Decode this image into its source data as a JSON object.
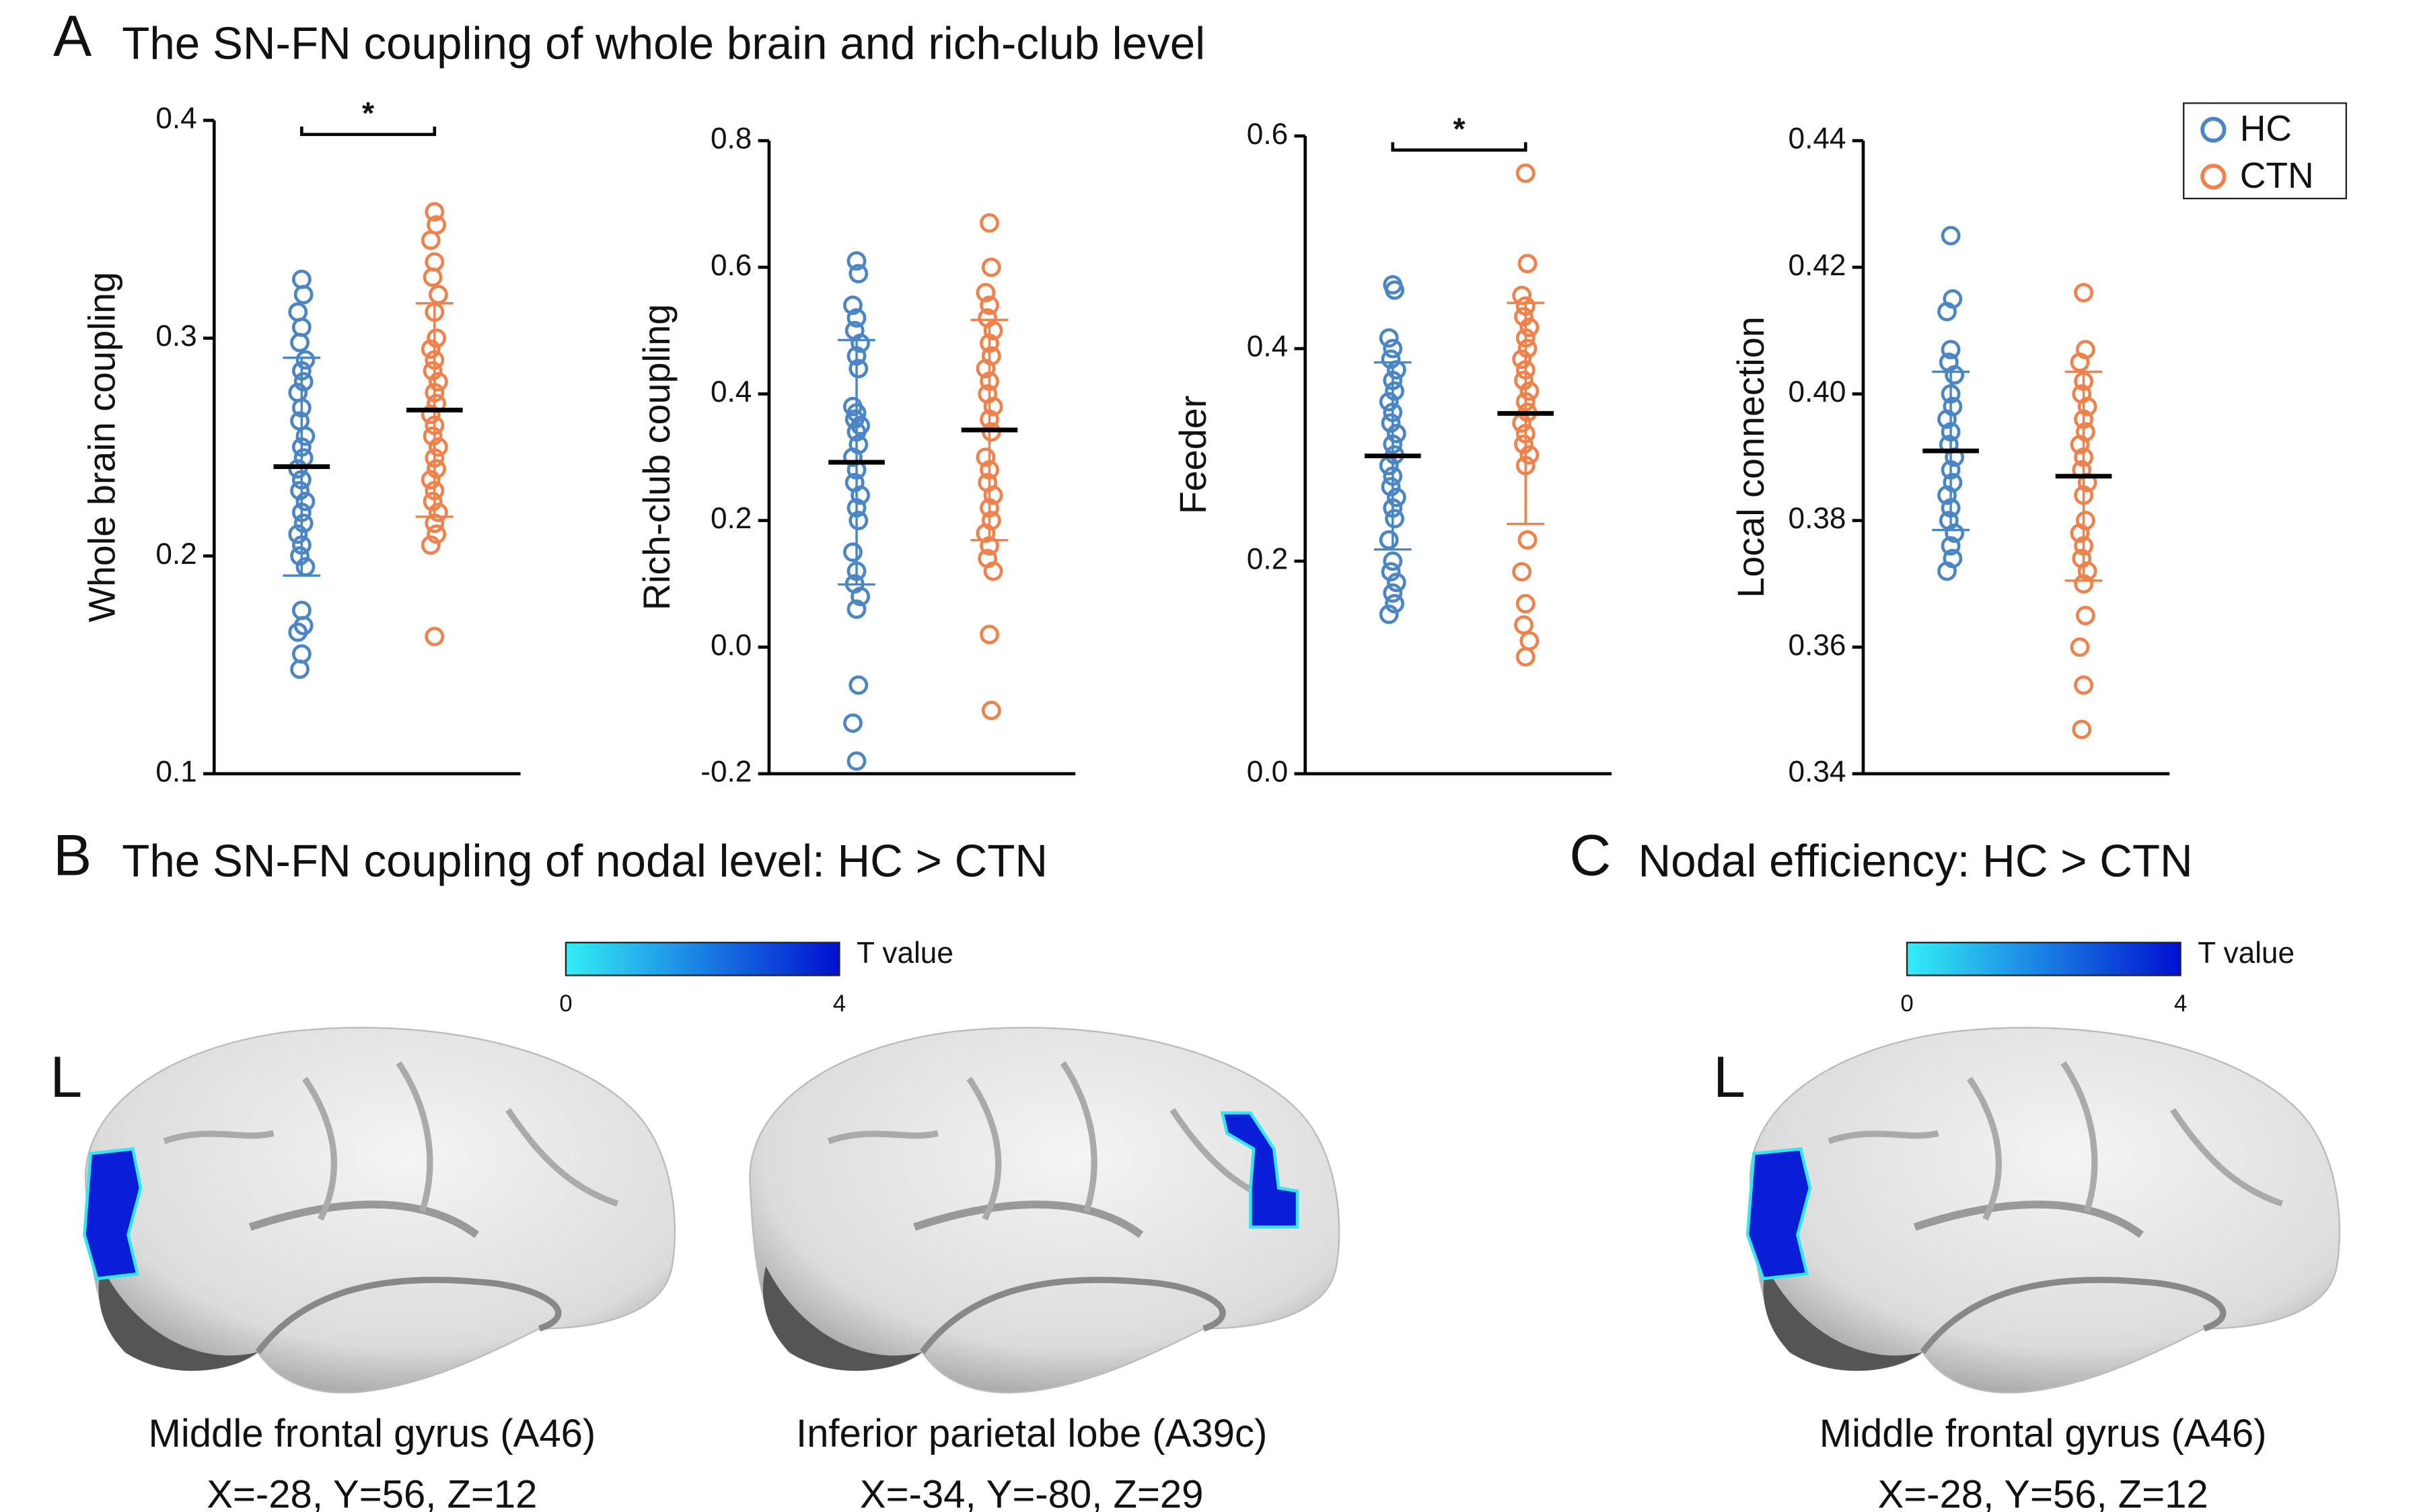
{
  "panels": [
    {
      "label": "A",
      "title": "The SN-FN coupling of whole brain and rich-club level"
    },
    {
      "label": "B",
      "title": "The SN-FN coupling of nodal level: HC > CTN"
    },
    {
      "label": "C",
      "title": "Nodal efficiency:  HC > CTN"
    }
  ],
  "chart_data": [
    {
      "type": "dot",
      "ylabel": "Whole brain coupling",
      "ylim": [
        0.1,
        0.4
      ],
      "yticks": [
        0.1,
        0.2,
        0.3,
        0.4
      ],
      "annotation": "*",
      "series": [
        {
          "color": "#4a86c5",
          "mean": 0.241,
          "sd": 0.05,
          "values": [
            0.327,
            0.32,
            0.312,
            0.305,
            0.298,
            0.29,
            0.285,
            0.28,
            0.275,
            0.268,
            0.262,
            0.255,
            0.25,
            0.245,
            0.24,
            0.235,
            0.23,
            0.225,
            0.22,
            0.215,
            0.21,
            0.205,
            0.2,
            0.195,
            0.175,
            0.168,
            0.165,
            0.155,
            0.148
          ]
        },
        {
          "color": "#f0814a",
          "mean": 0.267,
          "sd": 0.049,
          "values": [
            0.358,
            0.352,
            0.345,
            0.335,
            0.328,
            0.32,
            0.312,
            0.3,
            0.295,
            0.29,
            0.285,
            0.28,
            0.275,
            0.27,
            0.265,
            0.26,
            0.255,
            0.25,
            0.245,
            0.24,
            0.235,
            0.23,
            0.225,
            0.22,
            0.215,
            0.21,
            0.205,
            0.163
          ]
        }
      ]
    },
    {
      "type": "dot",
      "ylabel": "Rich-club coupling",
      "ylim": [
        -0.2,
        0.8
      ],
      "yticks": [
        -0.2,
        {
          "value": 0,
          "label": "0.0"
        },
        0.2,
        0.4,
        0.6,
        0.8
      ],
      "series": [
        {
          "color": "#4a86c5",
          "mean": 0.292,
          "sd": 0.193,
          "values": [
            0.61,
            0.59,
            0.54,
            0.52,
            0.5,
            0.48,
            0.46,
            0.44,
            0.38,
            0.37,
            0.36,
            0.35,
            0.34,
            0.32,
            0.3,
            0.28,
            0.26,
            0.24,
            0.22,
            0.2,
            0.15,
            0.12,
            0.1,
            0.08,
            0.06,
            -0.06,
            -0.12,
            -0.18
          ]
        },
        {
          "color": "#f0814a",
          "mean": 0.343,
          "sd": 0.174,
          "values": [
            0.67,
            0.6,
            0.56,
            0.54,
            0.52,
            0.5,
            0.48,
            0.46,
            0.44,
            0.42,
            0.4,
            0.38,
            0.36,
            0.34,
            0.3,
            0.28,
            0.26,
            0.24,
            0.22,
            0.2,
            0.18,
            0.16,
            0.14,
            0.12,
            0.02,
            -0.1
          ]
        }
      ]
    },
    {
      "type": "dot",
      "ylabel": "Feeder",
      "ylim": [
        0,
        0.6
      ],
      "yticks": [
        {
          "value": 0,
          "label": "0.0"
        },
        0.2,
        0.4,
        0.6
      ],
      "annotation": "*",
      "series": [
        {
          "color": "#4a86c5",
          "mean": 0.299,
          "sd": 0.088,
          "values": [
            0.46,
            0.455,
            0.41,
            0.4,
            0.39,
            0.38,
            0.37,
            0.36,
            0.35,
            0.34,
            0.33,
            0.32,
            0.31,
            0.3,
            0.29,
            0.28,
            0.27,
            0.26,
            0.25,
            0.24,
            0.22,
            0.2,
            0.19,
            0.18,
            0.17,
            0.16,
            0.15
          ]
        },
        {
          "color": "#f0814a",
          "mean": 0.339,
          "sd": 0.104,
          "values": [
            0.565,
            0.48,
            0.45,
            0.44,
            0.43,
            0.42,
            0.41,
            0.4,
            0.39,
            0.38,
            0.37,
            0.36,
            0.35,
            0.34,
            0.33,
            0.32,
            0.31,
            0.3,
            0.29,
            0.22,
            0.19,
            0.16,
            0.14,
            0.125,
            0.11
          ]
        }
      ]
    },
    {
      "type": "dot",
      "ylabel": "Local connection",
      "ylim": [
        0.34,
        0.44
      ],
      "yticks": [
        0.34,
        0.36,
        0.38,
        {
          "value": 0.4,
          "label": "0.40"
        },
        0.42,
        0.44
      ],
      "series": [
        {
          "name": "HC",
          "color": "#4a86c5",
          "mean": 0.391,
          "sd": 0.0125,
          "values": [
            0.425,
            0.415,
            0.413,
            0.407,
            0.405,
            0.403,
            0.4,
            0.398,
            0.396,
            0.394,
            0.392,
            0.39,
            0.388,
            0.386,
            0.384,
            0.382,
            0.38,
            0.378,
            0.376,
            0.374,
            0.372
          ]
        },
        {
          "name": "CTN",
          "color": "#f0814a",
          "mean": 0.387,
          "sd": 0.0165,
          "values": [
            0.416,
            0.407,
            0.405,
            0.402,
            0.4,
            0.398,
            0.396,
            0.394,
            0.392,
            0.39,
            0.388,
            0.386,
            0.384,
            0.38,
            0.378,
            0.376,
            0.374,
            0.372,
            0.37,
            0.365,
            0.36,
            0.354,
            0.347
          ]
        }
      ]
    }
  ],
  "colorbars": [
    {
      "label": "T value",
      "min": 0,
      "max": 4
    },
    {
      "label": "T value",
      "min": 0,
      "max": 4
    }
  ],
  "brains": [
    {
      "hemisphere": "L",
      "region": "Middle frontal gyrus (A46)",
      "coordinates": "X=-28, Y=56, Z=12"
    },
    {
      "region": "Inferior parietal lobe (A39c)",
      "coordinates": "X=-34, Y=-80, Z=29"
    },
    {
      "hemisphere": "L",
      "region": "Middle frontal gyrus (A46)",
      "coordinates": "X=-28, Y=56, Z=12"
    }
  ]
}
